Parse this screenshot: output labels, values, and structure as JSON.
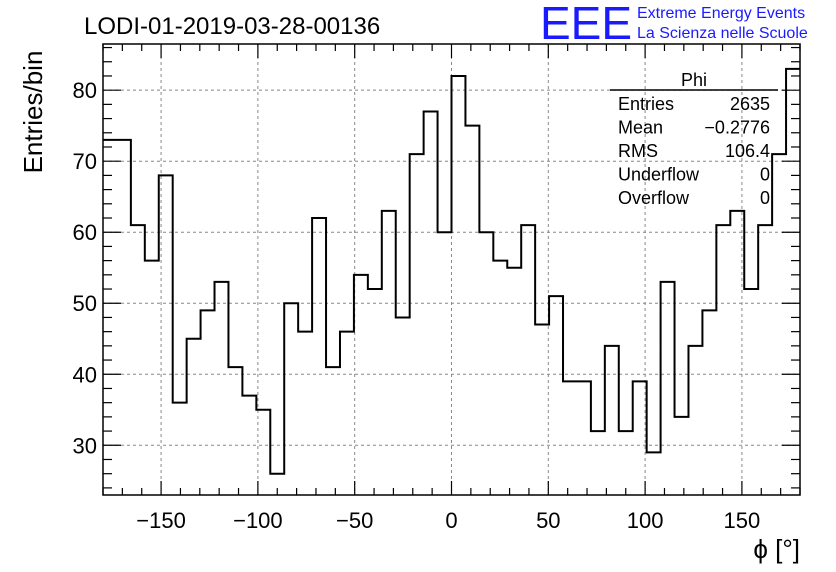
{
  "chart_data": {
    "type": "histogram",
    "title": "LODI-01-2019-03-28-00136",
    "xlabel": "ϕ [°]",
    "ylabel": "Entries/bin",
    "xlim": [
      -180,
      180
    ],
    "ylim": [
      23,
      86.5
    ],
    "xticks": [
      -150,
      -100,
      -50,
      0,
      50,
      100,
      150
    ],
    "yticks": [
      30,
      40,
      50,
      60,
      70,
      80
    ],
    "grid": true,
    "bin_width": 7.2,
    "bin_edges_start": -180,
    "values": [
      73,
      73,
      61,
      56,
      68,
      36,
      45,
      49,
      53,
      41,
      37,
      35,
      26,
      50,
      46,
      62,
      41,
      46,
      54,
      52,
      63,
      48,
      71,
      77,
      60,
      82,
      75,
      60,
      56,
      55,
      61,
      47,
      51,
      39,
      39,
      32,
      44,
      32,
      39,
      29,
      53,
      34,
      44,
      49,
      61,
      63,
      52,
      61,
      71,
      83
    ],
    "stats": {
      "name": "Phi",
      "rows": [
        {
          "label": "Entries",
          "value": "2635"
        },
        {
          "label": "Mean",
          "value": "−0.2776"
        },
        {
          "label": "RMS",
          "value": "106.4"
        },
        {
          "label": "Underflow",
          "value": "0"
        },
        {
          "label": "Overflow",
          "value": "0"
        }
      ]
    }
  },
  "logo": {
    "short": "EEE",
    "line1": "Extreme Energy Events",
    "line2": "La Scienza nelle Scuole",
    "color": "#1a1aff"
  }
}
